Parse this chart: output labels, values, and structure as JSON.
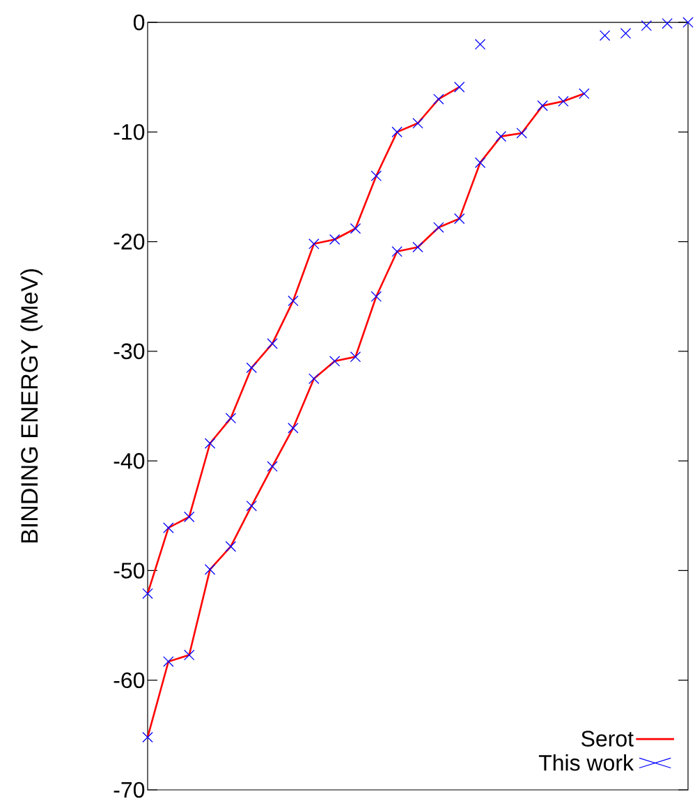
{
  "chart_data": {
    "type": "line",
    "ylabel": "BINDING ENERGY (MeV)",
    "categories": [
      null,
      null,
      null,
      null,
      null,
      null,
      null,
      null,
      null,
      null,
      null,
      null,
      null,
      null,
      null,
      null,
      null,
      null,
      null,
      null,
      null,
      null,
      null,
      null,
      null,
      null,
      null
    ],
    "ylim": [
      -70,
      0
    ],
    "yticks": [
      -70,
      -60,
      -50,
      -40,
      -30,
      -20,
      -10,
      0
    ],
    "tick_labels": "y",
    "legend": "bottom right",
    "series": [
      {
        "name": "Serot",
        "color": "#ff0000",
        "line_style": "solid",
        "values": [
          -52.1,
          -46.1,
          -45.1,
          -38.4,
          -36.1,
          -31.5,
          -29.3,
          -25.4,
          -20.2,
          -19.8,
          -18.8,
          -14.0,
          -10.0,
          -9.2,
          -7.0,
          -5.9,
          null,
          null,
          null,
          null,
          null,
          null,
          null,
          null,
          null,
          null,
          null
        ]
      },
      {
        "color": "#ff0000",
        "line_style": "solid",
        "values": [
          -65.2,
          -58.3,
          -57.7,
          -49.9,
          -47.8,
          -44.1,
          -40.5,
          -37.0,
          -32.5,
          -30.9,
          -30.5,
          -25.0,
          -20.9,
          -20.5,
          -18.7,
          -17.9,
          -12.8,
          -10.4,
          -10.1,
          -7.6,
          -7.2,
          -6.5,
          null,
          null,
          null,
          null,
          null
        ]
      },
      {
        "name": "This work",
        "type": "scatter",
        "color": "#0000ff",
        "marker": "cross",
        "values": [
          -52.1,
          -46.1,
          -45.1,
          -38.4,
          -36.1,
          -31.5,
          -29.3,
          -25.4,
          -20.2,
          -19.8,
          -18.8,
          -14.0,
          -10.0,
          -9.2,
          -7.0,
          -5.9,
          -2.0,
          null,
          null,
          null,
          null,
          null,
          -1.2,
          -1.0,
          -0.3,
          -0.1,
          0.0
        ]
      },
      {
        "type": "scatter",
        "color": "#0000ff",
        "marker": "cross",
        "values": [
          -65.2,
          -58.3,
          -57.7,
          -49.9,
          -47.8,
          -44.1,
          -40.5,
          -37.0,
          -32.5,
          -30.9,
          -30.5,
          -25.0,
          -20.9,
          -20.5,
          -18.7,
          -17.9,
          -12.8,
          -10.4,
          -10.1,
          -7.6,
          -7.2,
          -6.5,
          null,
          null,
          null,
          null,
          null
        ]
      }
    ]
  }
}
